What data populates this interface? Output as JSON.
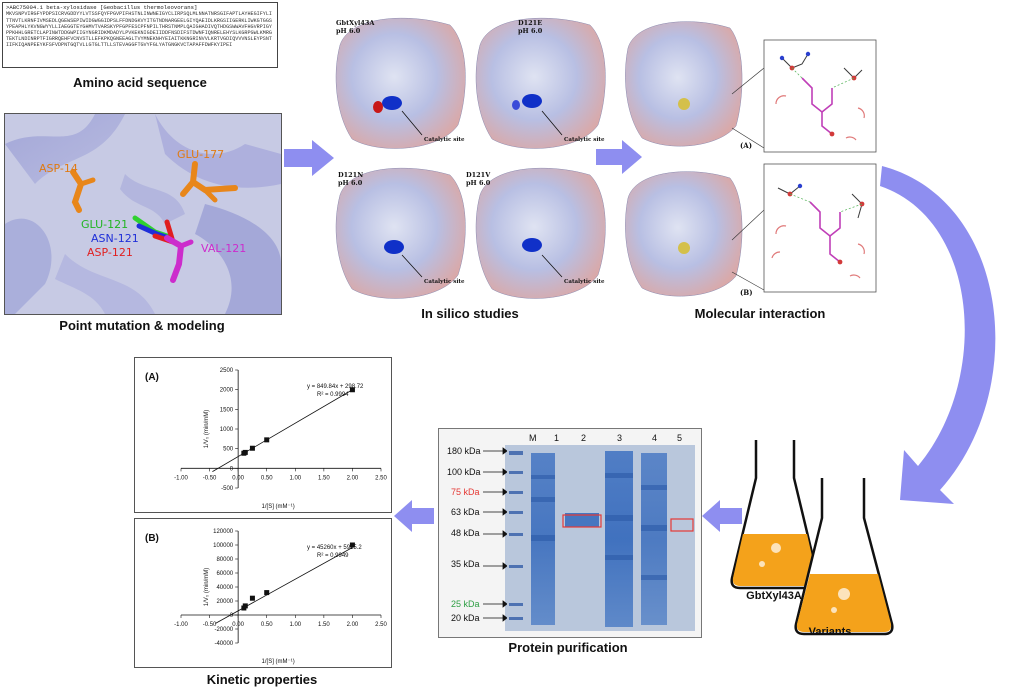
{
  "sequence_box": {
    "header": ">ABC75004.1 beta-xylosidase [Geobacillus thermoleovorans]",
    "sequence": "MKVSNPVIRGFYPDPSICRVGDDYYLVTSSFQYFPGVPIFHSTNLINWNEIGYCLIRPSQLMLNNATNRSGIFAPTLAYHEGIFYLITTNVTLKRNFIVMSEDLQGEWSEPIWIDGWGGIDPSLFFDNDGKVYITGTNDNARGEELGIYQAEIDLKRGSIIGERKLIWKGTGGSYPEAPHLYKVNGWYYLLIAEGGTEYGHMVTVARSKYPFGPFESCPFNPILTHRSTNMPLQAIGHADIVQTHDGSWWAVFHGVRPIGYPPKHHLGRETCLAPINWTDDGWPIIGYNGRIDKMDADYLPVKEKNIGDEIIDDFNSDIFSTDWNFIQNRELEHYSLKGRPGWLKMRGTEKTLNDINRPTFIGRRQEHFVCNVSTLLEFKPKQGNEEAGLTVYMNEKNHYEIAITKKNGRINVVLKRTVGDIQVVVNSLEYPSNTIIFKIQANPEEYKFSFVDPNTGQTVLLGTGLTTLLSTEVAGGFTGVYFGLYATGNGKVCTAPAFFDWFKYIPEI"
  },
  "captions": {
    "amino_acid": "Amino acid sequence",
    "point_mutation": "Point mutation & modeling",
    "in_silico": "In silico studies",
    "molecular_interaction": "Molecular interaction",
    "kinetic": "Kinetic properties",
    "protein_purification": "Protein purification",
    "wild_type": "GbtXyl43A",
    "variants": "Variants"
  },
  "mutation_labels": {
    "asp14": "ASP-14",
    "glu177": "GLU-177",
    "glu121": "GLU-121",
    "asn121": "ASN-121",
    "asp121": "ASP-121",
    "val121": "VAL-121"
  },
  "in_silico_panels": [
    {
      "title": "GbtXyl43A",
      "ph": "pH 6.0",
      "site": "Catalytic site"
    },
    {
      "title": "D121E",
      "ph": "pH 6.0",
      "site": "Catalytic site"
    },
    {
      "title": "D121N",
      "ph": "pH 6.0",
      "site": "Catalytic site"
    },
    {
      "title": "D121V",
      "ph": "pH 6.0",
      "site": "Catalytic site"
    }
  ],
  "interaction_tags": {
    "a": "(A)",
    "b": "(B)"
  },
  "gel": {
    "markers": [
      {
        "label": "180 kDa",
        "color": "#111111"
      },
      {
        "label": "100 kDa",
        "color": "#111111"
      },
      {
        "label": "75 kDa",
        "color": "#e53935"
      },
      {
        "label": "63 kDa",
        "color": "#111111"
      },
      {
        "label": "48 kDa",
        "color": "#111111"
      },
      {
        "label": "35 kDa",
        "color": "#111111"
      },
      {
        "label": "25 kDa",
        "color": "#2e9e44"
      },
      {
        "label": "20 kDa",
        "color": "#111111"
      }
    ],
    "lanes": [
      "M",
      "1",
      "2",
      "3",
      "4",
      "5"
    ]
  },
  "chart_data": [
    {
      "type": "scatter",
      "panel": "(A)",
      "xlabel": "1/[S] (mM⁻¹)",
      "ylabel": "1/V₀ (min/mM)",
      "equation": "y = 849.84x + 298.72",
      "r2": "R² = 0.9994",
      "xlim": [
        -1.0,
        2.5
      ],
      "ylim": [
        -500,
        2500
      ],
      "xticks": [
        "-1.00",
        "-0.50",
        "0.00",
        "0.50",
        "1.00",
        "1.50",
        "2.00",
        "2.50"
      ],
      "yticks": [
        "-500",
        "0",
        "500",
        "1000",
        "1500",
        "2000",
        "2500"
      ],
      "points": [
        {
          "x": 0.1,
          "y": 384
        },
        {
          "x": 0.125,
          "y": 405
        },
        {
          "x": 0.25,
          "y": 511
        },
        {
          "x": 0.5,
          "y": 724
        },
        {
          "x": 2.0,
          "y": 1998
        }
      ],
      "fit": {
        "slope": 849.84,
        "intercept": 298.72,
        "x_from": -0.45,
        "x_to": 2.0
      }
    },
    {
      "type": "scatter",
      "panel": "(B)",
      "xlabel": "1/[S] (mM⁻¹)",
      "ylabel": "1/V₀ (min/mM)",
      "equation": "y = 45260x + 5915.2",
      "r2": "R² = 0.9949",
      "xlim": [
        -1.0,
        2.5
      ],
      "ylim": [
        -40000,
        120000
      ],
      "xticks": [
        "-1.00",
        "-0.50",
        "0.00",
        "0.50",
        "1.00",
        "1.50",
        "2.00",
        "2.50"
      ],
      "yticks": [
        "-40000",
        "-20000",
        "0",
        "20000",
        "40000",
        "60000",
        "80000",
        "100000",
        "120000"
      ],
      "points": [
        {
          "x": 0.1,
          "y": 10000
        },
        {
          "x": 0.125,
          "y": 13000
        },
        {
          "x": 0.25,
          "y": 24000
        },
        {
          "x": 0.5,
          "y": 32000
        },
        {
          "x": 2.0,
          "y": 100000
        }
      ],
      "fit": {
        "slope": 45260,
        "intercept": 5915.2,
        "x_from": -0.4,
        "x_to": 2.0
      }
    }
  ],
  "colors": {
    "arrow": "#8e8ef0",
    "orange": "#f4a21b",
    "gel_bg": "#b9c7dc",
    "band": "#3a6dbd",
    "highlight": "#e53935"
  }
}
